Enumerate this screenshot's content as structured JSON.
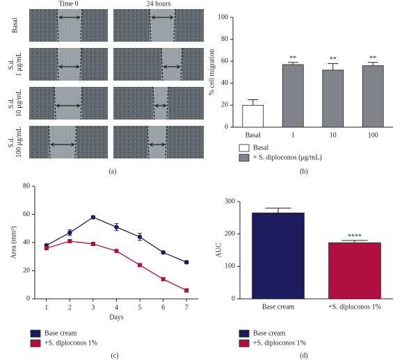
{
  "images": {
    "column_headers": [
      "Time 0",
      "24 hours"
    ],
    "row_labels": [
      [
        "Basal"
      ],
      [
        "S.d.",
        "1 μg/mL"
      ],
      [
        "S.d.",
        "10 μg/mL"
      ],
      [
        "S.d.",
        "100 μg/mL"
      ]
    ],
    "panel_label": "(a)"
  },
  "chart_data": [
    {
      "type": "bar",
      "panel_label": "(b)",
      "y_label": "% cell migration",
      "categories": [
        "Basal",
        "1",
        "10",
        "100"
      ],
      "series": [
        {
          "name": "Basal",
          "color": "#ffffff",
          "values": [
            20,
            null,
            null,
            null
          ],
          "errors": [
            5,
            null,
            null,
            null
          ]
        },
        {
          "name": "+ S. diploconos (μg/mL)",
          "color": "#80848a",
          "values": [
            null,
            57,
            52,
            56
          ],
          "errors": [
            null,
            2,
            6,
            3
          ]
        }
      ],
      "annotations": [
        null,
        "**",
        "**",
        "**"
      ],
      "ylim": [
        0,
        100
      ],
      "yticks": [
        0,
        20,
        40,
        60,
        80,
        100
      ]
    },
    {
      "type": "line",
      "panel_label": "(c)",
      "x_label": "Days",
      "y_label": "Area (mm²)",
      "x": [
        1,
        2,
        3,
        4,
        5,
        6,
        7
      ],
      "series": [
        {
          "name": "Base cream",
          "color": "#1b1b5e",
          "marker": "circle",
          "values": [
            38,
            47,
            58,
            51,
            44,
            33,
            26
          ],
          "errors": [
            1,
            2,
            1,
            2.5,
            2.5,
            1,
            1
          ]
        },
        {
          "name": "+S. diploconos 1%",
          "color": "#b0103f",
          "marker": "square",
          "values": [
            36,
            41,
            39,
            34,
            24,
            14,
            6
          ],
          "errors": [
            1,
            1,
            1,
            1,
            1,
            1,
            1
          ]
        }
      ],
      "xlim": [
        0.5,
        7.5
      ],
      "xticks": [
        1,
        2,
        3,
        4,
        5,
        6,
        7
      ],
      "ylim": [
        0,
        80
      ],
      "yticks": [
        0,
        20,
        40,
        60,
        80
      ]
    },
    {
      "type": "bar",
      "panel_label": "(d)",
      "y_label": "AUC",
      "categories": [
        "Base cream",
        "+S. diploconos 1%"
      ],
      "series": [
        {
          "name": "Base cream",
          "color": "#1b1b5e",
          "values": [
            265,
            null
          ],
          "errors": [
            15,
            null
          ]
        },
        {
          "name": "+S. diploconos 1%",
          "color": "#b0103f",
          "values": [
            null,
            173
          ],
          "errors": [
            null,
            7
          ]
        }
      ],
      "annotations": [
        null,
        "****"
      ],
      "ylim": [
        0,
        300
      ],
      "yticks": [
        0,
        100,
        200,
        300
      ]
    }
  ]
}
